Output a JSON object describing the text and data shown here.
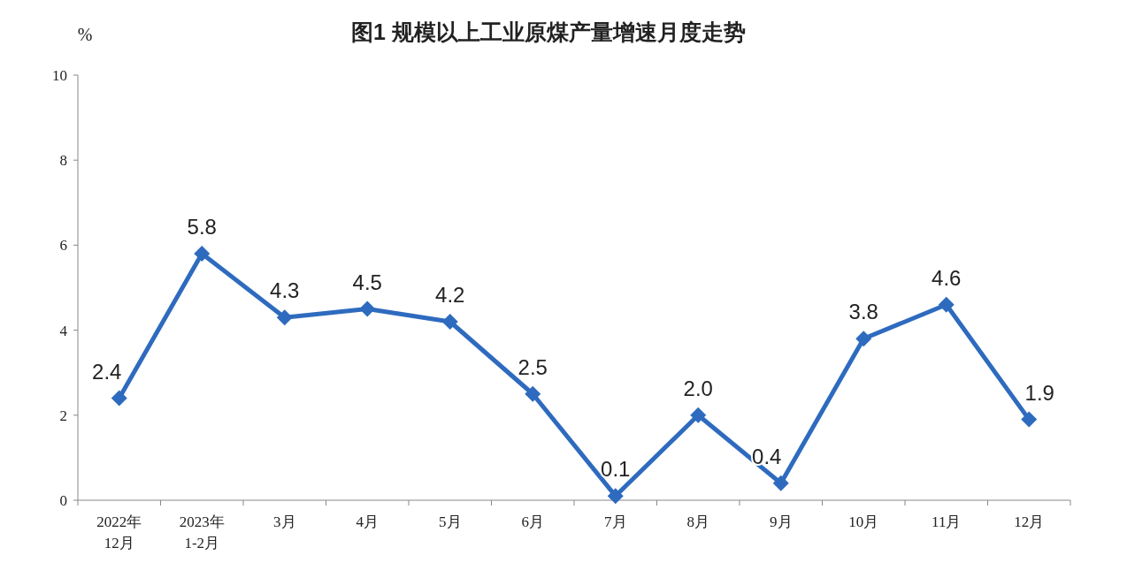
{
  "chart_data": {
    "type": "line",
    "title": "图1  规模以上工业原煤产量增速月度走势",
    "ylabel": "%",
    "categories": [
      "2022年\n12月",
      "2023年\n1-2月",
      "3月",
      "4月",
      "5月",
      "6月",
      "7月",
      "8月",
      "9月",
      "10月",
      "11月",
      "12月"
    ],
    "series": [
      {
        "color": "#2e6bbf",
        "values": [
          2.4,
          5.8,
          4.3,
          4.5,
          4.2,
          2.5,
          0.1,
          2.0,
          0.4,
          3.8,
          4.6,
          1.9
        ]
      }
    ],
    "value_labels": [
      "2.4",
      "5.8",
      "4.3",
      "4.5",
      "4.2",
      "2.5",
      "0.1",
      "2.0",
      "0.4",
      "3.8",
      "4.6",
      "1.9"
    ],
    "ylim": [
      0,
      10
    ],
    "yticks": [
      0,
      2,
      4,
      6,
      8,
      10
    ],
    "marker": "diamond",
    "line_style": "solid",
    "grid": false
  }
}
